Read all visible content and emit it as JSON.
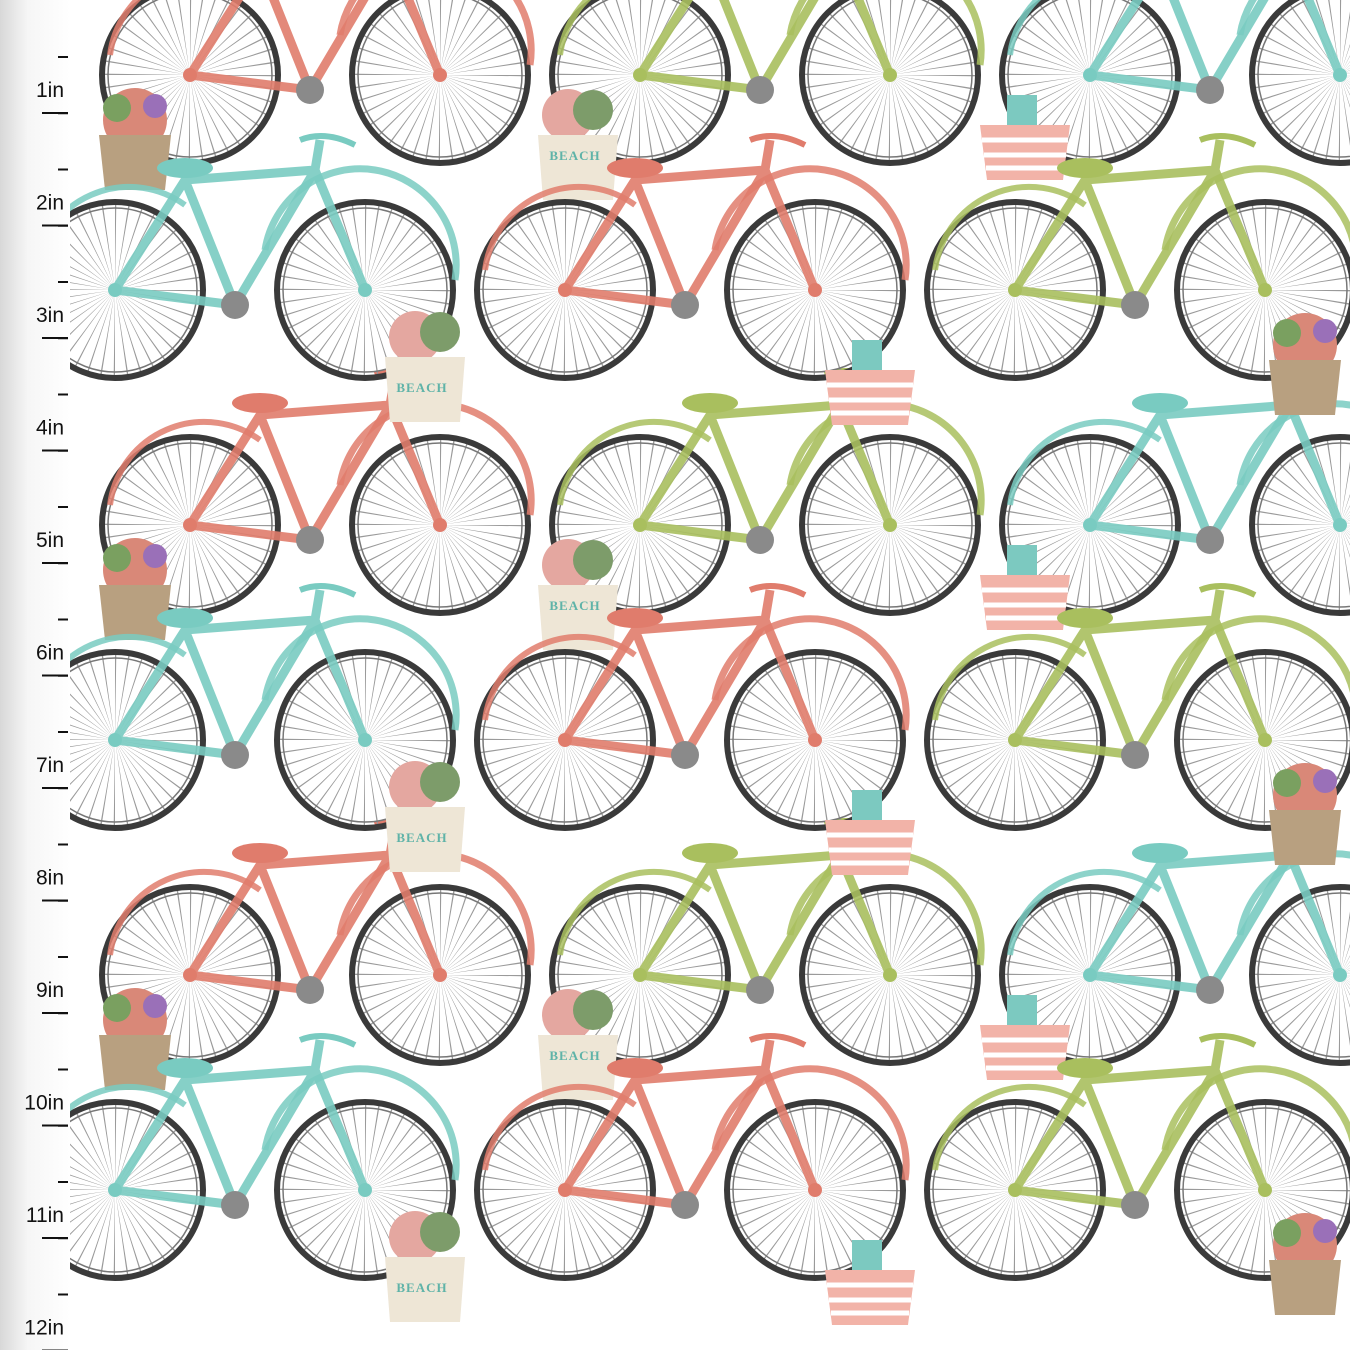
{
  "ruler": {
    "labels": [
      "1in",
      "2in",
      "3in",
      "4in",
      "5in",
      "6in",
      "7in",
      "8in",
      "9in",
      "10in",
      "11in",
      "12in"
    ]
  },
  "bags": [
    "BEACH",
    "BEACH",
    "BEACH",
    "BEACH",
    "BEACH",
    "BEACH"
  ]
}
